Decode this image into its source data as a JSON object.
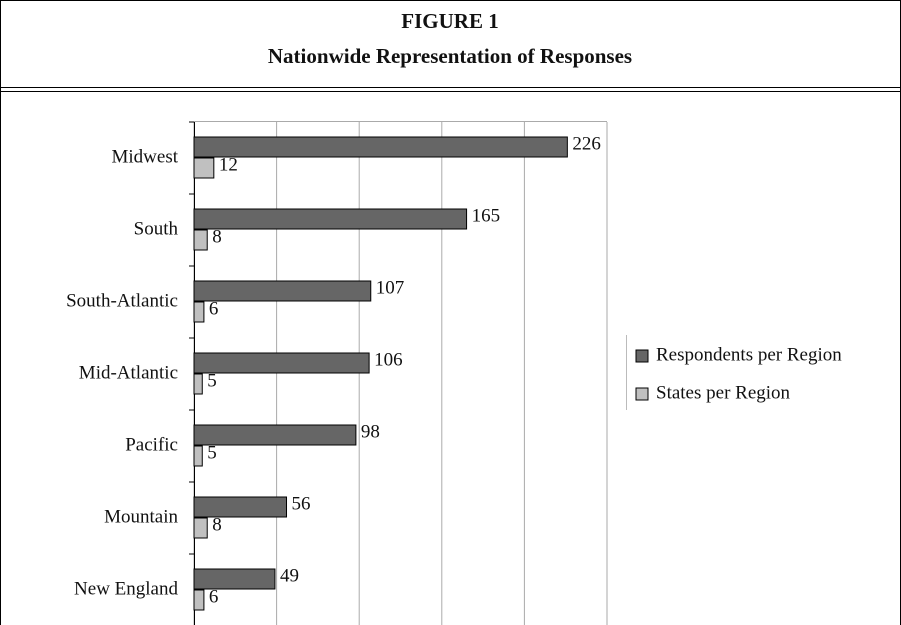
{
  "chart_data": {
    "type": "barh",
    "title": "FIGURE 1",
    "subtitle": "Nationwide Representation of Responses",
    "categories": [
      "Midwest",
      "South",
      "South-Atlantic",
      "Mid-Atlantic",
      "Pacific",
      "Mountain",
      "New England"
    ],
    "series": [
      {
        "name": "Respondents per Region",
        "color": "#666666",
        "values": [
          226,
          165,
          107,
          106,
          98,
          56,
          49
        ]
      },
      {
        "name": "States per Region",
        "color": "#c0c0c0",
        "values": [
          12,
          8,
          6,
          5,
          5,
          8,
          6
        ]
      }
    ],
    "xlim": [
      0,
      250
    ],
    "xticks": [
      0,
      50,
      100,
      150,
      200,
      250
    ],
    "grid": true,
    "legend": "right"
  }
}
